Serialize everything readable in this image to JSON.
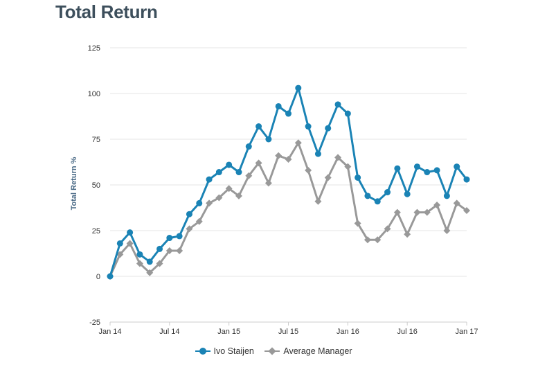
{
  "page": {
    "title": "Total Return"
  },
  "chart_data": {
    "type": "line",
    "title": "Total Return",
    "xlabel": "",
    "ylabel": "Total Return %",
    "ylim": [
      -25,
      125
    ],
    "yticks": [
      -25,
      0,
      25,
      50,
      75,
      100,
      125
    ],
    "xlim": [
      0,
      36
    ],
    "x_tick_positions": [
      0,
      6,
      12,
      18,
      24,
      30,
      36
    ],
    "x_tick_labels": [
      "Jan 14",
      "Jul 14",
      "Jan 15",
      "Jul 15",
      "Jan 16",
      "Jul 16",
      "Jan 17"
    ],
    "grid": "horizontal",
    "legend": "bottom-center",
    "x": [
      0,
      1,
      2,
      3,
      4,
      5,
      6,
      7,
      8,
      9,
      10,
      11,
      12,
      13,
      14,
      15,
      16,
      17,
      18,
      19,
      20,
      21,
      22,
      23,
      24,
      25,
      26,
      27,
      28,
      29,
      30,
      31,
      32,
      33,
      34,
      35,
      36
    ],
    "series": [
      {
        "name": "Ivo Staijen",
        "color": "#1a83b5",
        "marker": "circle",
        "values": [
          0,
          18,
          24,
          12,
          8,
          15,
          21,
          22,
          34,
          40,
          53,
          57,
          61,
          57,
          71,
          82,
          75,
          93,
          89,
          103,
          82,
          67,
          81,
          94,
          89,
          54,
          44,
          41,
          46,
          59,
          45,
          60,
          57,
          58,
          44,
          60,
          53
        ]
      },
      {
        "name": "Average Manager",
        "color": "#999999",
        "marker": "diamond",
        "values": [
          0,
          12,
          18,
          7,
          2,
          7,
          14,
          14,
          26,
          30,
          40,
          43,
          48,
          44,
          55,
          62,
          51,
          66,
          64,
          73,
          58,
          41,
          54,
          65,
          60,
          29,
          20,
          20,
          26,
          35,
          23,
          35,
          35,
          39,
          25,
          40,
          36
        ]
      }
    ]
  }
}
